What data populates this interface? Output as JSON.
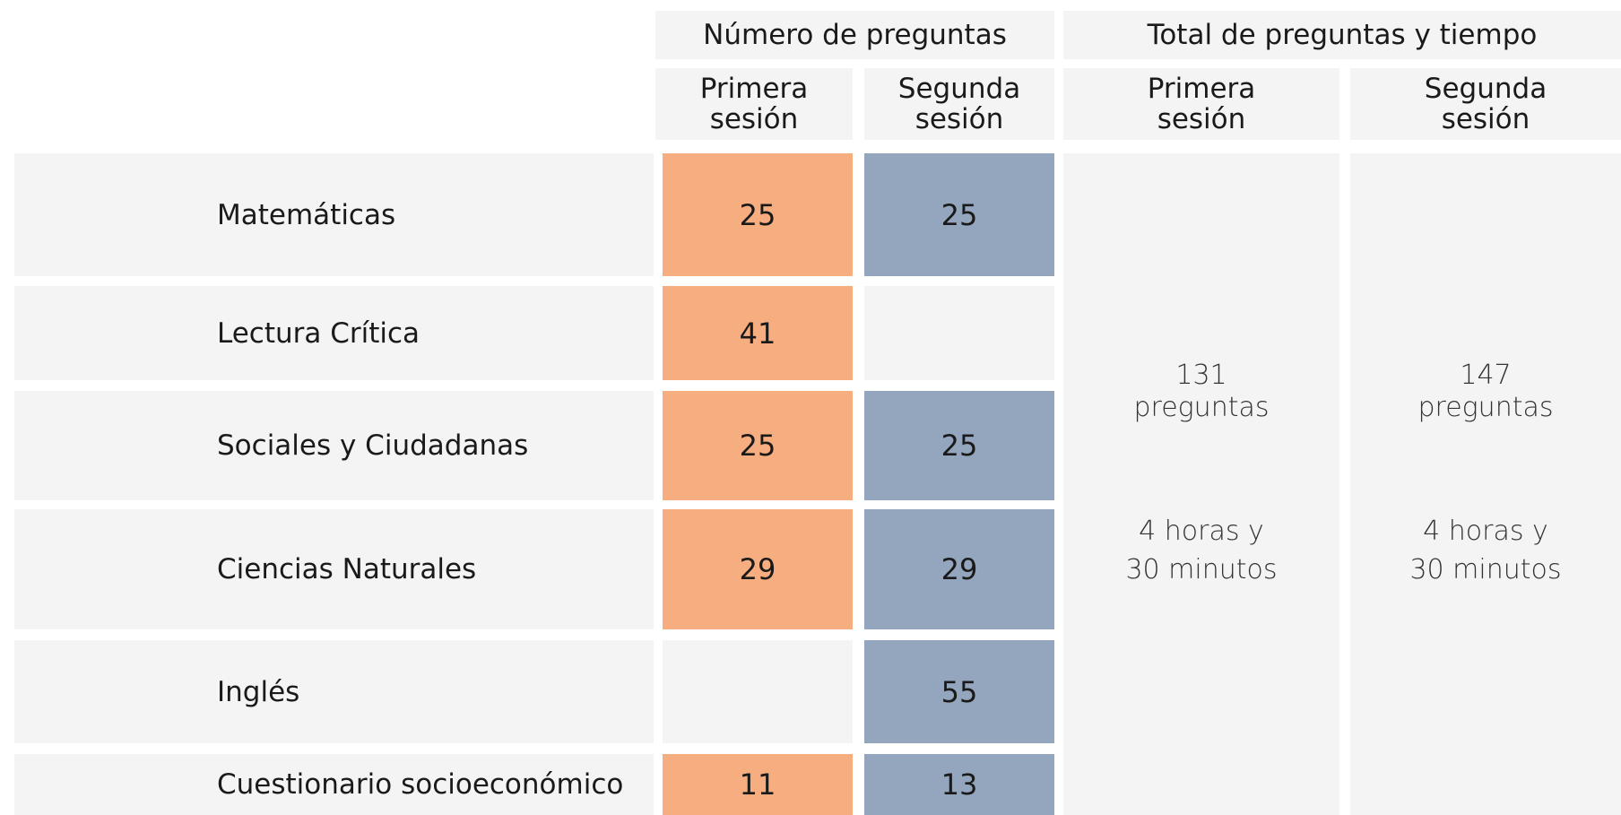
{
  "header": {
    "groups": [
      "Número de preguntas",
      "Total de preguntas y tiempo"
    ],
    "sessions": [
      "Primera sesión",
      "Segunda sesión",
      "Primera sesión",
      "Segunda sesión"
    ]
  },
  "table": {
    "rows": [
      {
        "subject": "Matemáticas",
        "first": 25,
        "second": 25
      },
      {
        "subject": "Lectura Crítica",
        "first": 41,
        "second": null
      },
      {
        "subject": "Sociales y Ciudadanas",
        "first": 25,
        "second": 25
      },
      {
        "subject": "Ciencias Naturales",
        "first": 29,
        "second": 29
      },
      {
        "subject": "Inglés",
        "first": null,
        "second": 55
      },
      {
        "subject": "Cuestionario socioeconómico",
        "first": 11,
        "second": 13
      }
    ]
  },
  "totals": [
    {
      "count": 131,
      "unit": "preguntas",
      "time": [
        "4 horas y",
        "30 minutos"
      ]
    },
    {
      "count": 147,
      "unit": "preguntas",
      "time": [
        "4 horas y",
        "30 minutos"
      ]
    }
  ]
}
